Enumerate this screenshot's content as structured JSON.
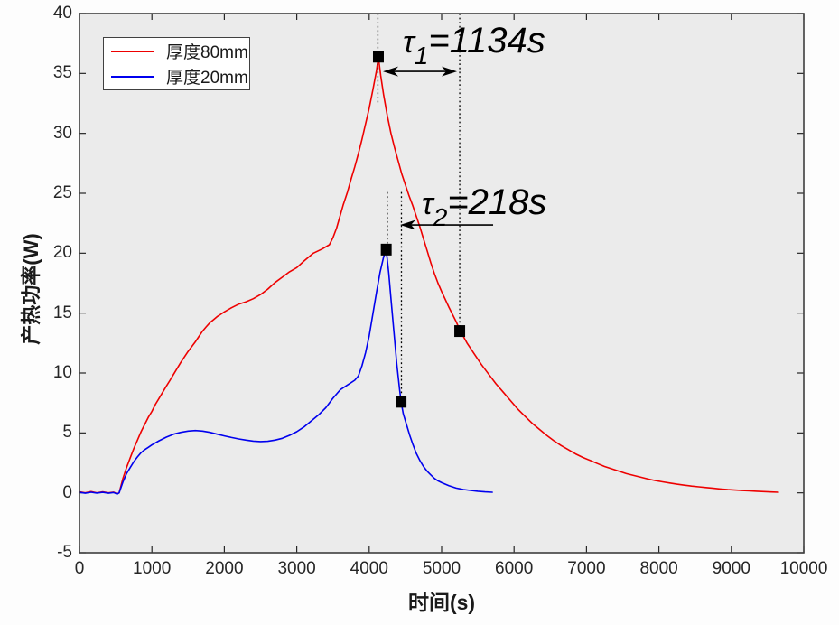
{
  "figure": {
    "bg": "#fdfdfd",
    "plot_bg": "#ebebeb",
    "axis_color": "#262626",
    "border_color": "#3f3f3f",
    "annotation_color": "#000000"
  },
  "chart_data": {
    "type": "line",
    "title": "",
    "xlabel": "时间(s)",
    "ylabel": "产热功率(W)",
    "xlim": [
      0,
      10000
    ],
    "ylim": [
      -5,
      40
    ],
    "xticks": [
      0,
      1000,
      2000,
      3000,
      4000,
      5000,
      6000,
      7000,
      8000,
      9000,
      10000
    ],
    "yticks": [
      -5,
      0,
      5,
      10,
      15,
      20,
      25,
      30,
      35,
      40
    ],
    "grid": false,
    "legend_position": "top-left",
    "series": [
      {
        "name": "厚度80mm",
        "color": "#ee0000",
        "points": [
          [
            0,
            0.08
          ],
          [
            80,
            0.0
          ],
          [
            160,
            0.1
          ],
          [
            240,
            0.0
          ],
          [
            320,
            0.08
          ],
          [
            400,
            0.0
          ],
          [
            470,
            0.06
          ],
          [
            520,
            -0.08
          ],
          [
            548,
            0
          ],
          [
            600,
            1.2
          ],
          [
            650,
            2.1
          ],
          [
            700,
            2.9
          ],
          [
            750,
            3.7
          ],
          [
            800,
            4.4
          ],
          [
            850,
            5.1
          ],
          [
            900,
            5.7
          ],
          [
            950,
            6.3
          ],
          [
            1000,
            6.8
          ],
          [
            1050,
            7.4
          ],
          [
            1100,
            7.9
          ],
          [
            1150,
            8.4
          ],
          [
            1200,
            8.9
          ],
          [
            1250,
            9.4
          ],
          [
            1300,
            9.9
          ],
          [
            1350,
            10.4
          ],
          [
            1400,
            10.9
          ],
          [
            1450,
            11.35
          ],
          [
            1500,
            11.8
          ],
          [
            1550,
            12.2
          ],
          [
            1600,
            12.6
          ],
          [
            1650,
            13.05
          ],
          [
            1700,
            13.5
          ],
          [
            1750,
            13.85
          ],
          [
            1800,
            14.2
          ],
          [
            1850,
            14.45
          ],
          [
            1900,
            14.7
          ],
          [
            1950,
            14.9
          ],
          [
            2000,
            15.1
          ],
          [
            2100,
            15.45
          ],
          [
            2200,
            15.75
          ],
          [
            2300,
            15.95
          ],
          [
            2400,
            16.2
          ],
          [
            2500,
            16.55
          ],
          [
            2600,
            17.0
          ],
          [
            2700,
            17.55
          ],
          [
            2800,
            18.0
          ],
          [
            2900,
            18.45
          ],
          [
            3000,
            18.8
          ],
          [
            3100,
            19.35
          ],
          [
            3230,
            20.0
          ],
          [
            3350,
            20.35
          ],
          [
            3450,
            20.7
          ],
          [
            3500,
            21.3
          ],
          [
            3550,
            22.1
          ],
          [
            3640,
            24.0
          ],
          [
            3700,
            25.1
          ],
          [
            3750,
            26.2
          ],
          [
            3800,
            27.2
          ],
          [
            3850,
            28.3
          ],
          [
            3900,
            29.5
          ],
          [
            3950,
            30.8
          ],
          [
            4000,
            32.1
          ],
          [
            4050,
            33.6
          ],
          [
            4100,
            35.2
          ],
          [
            4127,
            36.35
          ],
          [
            4160,
            34.8
          ],
          [
            4200,
            33.2
          ],
          [
            4250,
            31.5
          ],
          [
            4300,
            30.0
          ],
          [
            4350,
            28.8
          ],
          [
            4400,
            27.7
          ],
          [
            4450,
            26.6
          ],
          [
            4500,
            25.7
          ],
          [
            4550,
            24.8
          ],
          [
            4600,
            24.0
          ],
          [
            4650,
            23.1
          ],
          [
            4700,
            22.2
          ],
          [
            4750,
            21.2
          ],
          [
            4800,
            20.2
          ],
          [
            4850,
            19.2
          ],
          [
            4900,
            18.3
          ],
          [
            4950,
            17.5
          ],
          [
            5000,
            16.8
          ],
          [
            5100,
            15.5
          ],
          [
            5200,
            14.3
          ],
          [
            5250,
            13.6
          ],
          [
            5350,
            12.5
          ],
          [
            5450,
            11.6
          ],
          [
            5550,
            10.7
          ],
          [
            5650,
            9.9
          ],
          [
            5750,
            9.1
          ],
          [
            5850,
            8.4
          ],
          [
            5950,
            7.7
          ],
          [
            6050,
            7.0
          ],
          [
            6150,
            6.4
          ],
          [
            6250,
            5.8
          ],
          [
            6350,
            5.3
          ],
          [
            6450,
            4.8
          ],
          [
            6550,
            4.35
          ],
          [
            6650,
            3.95
          ],
          [
            6750,
            3.6
          ],
          [
            6850,
            3.25
          ],
          [
            6950,
            2.95
          ],
          [
            7050,
            2.7
          ],
          [
            7150,
            2.45
          ],
          [
            7250,
            2.2
          ],
          [
            7350,
            2.0
          ],
          [
            7450,
            1.8
          ],
          [
            7550,
            1.6
          ],
          [
            7650,
            1.45
          ],
          [
            7750,
            1.3
          ],
          [
            7850,
            1.15
          ],
          [
            7950,
            1.02
          ],
          [
            8050,
            0.92
          ],
          [
            8150,
            0.82
          ],
          [
            8250,
            0.72
          ],
          [
            8350,
            0.64
          ],
          [
            8450,
            0.56
          ],
          [
            8550,
            0.5
          ],
          [
            8650,
            0.44
          ],
          [
            8750,
            0.38
          ],
          [
            8850,
            0.32
          ],
          [
            8950,
            0.27
          ],
          [
            9050,
            0.23
          ],
          [
            9150,
            0.19
          ],
          [
            9250,
            0.16
          ],
          [
            9350,
            0.13
          ],
          [
            9450,
            0.1
          ],
          [
            9550,
            0.07
          ],
          [
            9650,
            0.05
          ]
        ]
      },
      {
        "name": "厚度20mm",
        "color": "#0000ee",
        "points": [
          [
            0,
            0.04
          ],
          [
            80,
            -0.03
          ],
          [
            160,
            0.05
          ],
          [
            240,
            -0.02
          ],
          [
            320,
            0.04
          ],
          [
            400,
            -0.03
          ],
          [
            470,
            0.03
          ],
          [
            520,
            -0.1
          ],
          [
            548,
            0
          ],
          [
            600,
            0.9
          ],
          [
            650,
            1.6
          ],
          [
            700,
            2.1
          ],
          [
            750,
            2.6
          ],
          [
            800,
            3.0
          ],
          [
            850,
            3.35
          ],
          [
            900,
            3.6
          ],
          [
            950,
            3.8
          ],
          [
            1000,
            4.0
          ],
          [
            1100,
            4.35
          ],
          [
            1200,
            4.65
          ],
          [
            1300,
            4.9
          ],
          [
            1400,
            5.05
          ],
          [
            1500,
            5.15
          ],
          [
            1600,
            5.2
          ],
          [
            1700,
            5.15
          ],
          [
            1800,
            5.05
          ],
          [
            1900,
            4.9
          ],
          [
            2000,
            4.75
          ],
          [
            2100,
            4.62
          ],
          [
            2200,
            4.5
          ],
          [
            2300,
            4.4
          ],
          [
            2400,
            4.32
          ],
          [
            2500,
            4.28
          ],
          [
            2600,
            4.3
          ],
          [
            2700,
            4.4
          ],
          [
            2800,
            4.55
          ],
          [
            2900,
            4.8
          ],
          [
            3000,
            5.1
          ],
          [
            3100,
            5.5
          ],
          [
            3200,
            6.0
          ],
          [
            3300,
            6.5
          ],
          [
            3400,
            7.1
          ],
          [
            3500,
            7.9
          ],
          [
            3600,
            8.6
          ],
          [
            3700,
            9.0
          ],
          [
            3800,
            9.4
          ],
          [
            3850,
            9.75
          ],
          [
            3900,
            10.6
          ],
          [
            3950,
            11.7
          ],
          [
            4000,
            13.1
          ],
          [
            4050,
            14.9
          ],
          [
            4100,
            16.7
          ],
          [
            4150,
            18.4
          ],
          [
            4200,
            19.7
          ],
          [
            4235,
            20.3
          ],
          [
            4270,
            18.3
          ],
          [
            4300,
            16.2
          ],
          [
            4340,
            13.5
          ],
          [
            4380,
            10.8
          ],
          [
            4420,
            8.6
          ],
          [
            4440,
            7.6
          ],
          [
            4470,
            6.6
          ],
          [
            4520,
            5.6
          ],
          [
            4560,
            4.8
          ],
          [
            4600,
            4.1
          ],
          [
            4650,
            3.3
          ],
          [
            4700,
            2.7
          ],
          [
            4750,
            2.2
          ],
          [
            4800,
            1.8
          ],
          [
            4850,
            1.5
          ],
          [
            4900,
            1.2
          ],
          [
            4950,
            1.0
          ],
          [
            5000,
            0.85
          ],
          [
            5100,
            0.6
          ],
          [
            5200,
            0.4
          ],
          [
            5300,
            0.28
          ],
          [
            5400,
            0.2
          ],
          [
            5500,
            0.13
          ],
          [
            5600,
            0.08
          ],
          [
            5700,
            0.05
          ]
        ]
      }
    ],
    "markers": {
      "shape": "square",
      "color": "#000000",
      "points": [
        {
          "series": "厚度80mm",
          "t": 4127,
          "w": 36.4
        },
        {
          "series": "厚度80mm",
          "t": 5250,
          "w": 13.5
        },
        {
          "series": "厚度20mm",
          "t": 4235,
          "w": 20.3
        },
        {
          "series": "厚度20mm",
          "t": 4440,
          "w": 7.6
        }
      ]
    },
    "annotations": {
      "tau1": {
        "sym": "τ",
        "sub": "1",
        "rest": "=1134s",
        "t": 4465,
        "w": 36.75
      },
      "tau2": {
        "sym": "τ",
        "sub": "2",
        "rest": "=218s",
        "t": 4726,
        "w": 23.26
      },
      "double_arrow": {
        "w": 35.17,
        "t1": 4190,
        "t2": 5212
      },
      "left_arrow": {
        "w": 22.36,
        "t_from": 5711,
        "t_to": 4427
      },
      "dotted_lines": [
        {
          "t": 4120,
          "w1": 40,
          "w2": 32.4
        },
        {
          "t": 5250,
          "w1": 40,
          "w2": 13.5
        },
        {
          "t": 4250,
          "w1": 25.1,
          "w2": 20.7
        },
        {
          "t": 4445,
          "w1": 25.1,
          "w2": 7.9
        }
      ]
    }
  }
}
